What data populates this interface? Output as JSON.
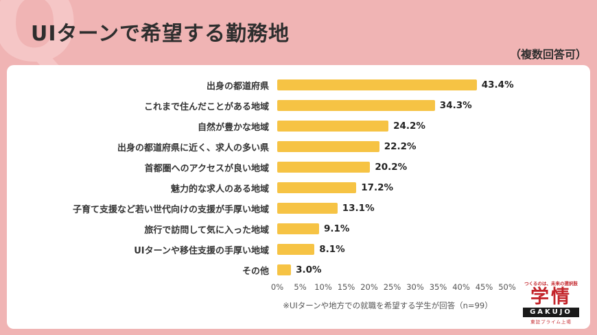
{
  "header": {
    "watermark": "Q",
    "title": "UIターンで希望する勤務地",
    "note": "（複数回答可）"
  },
  "chart_data": {
    "type": "bar",
    "orientation": "horizontal",
    "title": "UIターンで希望する勤務地",
    "categories": [
      "出身の都道府県",
      "これまで住んだことがある地域",
      "自然が豊かな地域",
      "出身の都道府県に近く、求人の多い県",
      "首都圏へのアクセスが良い地域",
      "魅力的な求人のある地域",
      "子育て支援など若い世代向けの支援が手厚い地域",
      "旅行で訪問して気に入った地域",
      "UIターンや移住支援の手厚い地域",
      "その他"
    ],
    "values": [
      43.4,
      34.3,
      24.2,
      22.2,
      20.2,
      17.2,
      13.1,
      9.1,
      8.1,
      3.0
    ],
    "value_labels": [
      "43.4%",
      "34.3%",
      "24.2%",
      "22.2%",
      "20.2%",
      "17.2%",
      "13.1%",
      "9.1%",
      "8.1%",
      "3.0%"
    ],
    "xlim": [
      0,
      50
    ],
    "x_ticks": [
      "0%",
      "5%",
      "10%",
      "15%",
      "20%",
      "25%",
      "30%",
      "35%",
      "40%",
      "45%",
      "50%"
    ],
    "bar_color": "#F6C344",
    "grid": false,
    "legend": "none",
    "footnote": "※UIターンや地方での就職を希望する学生が回答（n=99）"
  },
  "logo": {
    "tagline": "つくるのは、未来の選択肢",
    "name": "学情",
    "roman": "GAKUJO",
    "sub": "東証プライム上場"
  },
  "colors": {
    "background": "#F0B4B4",
    "card": "#FFFFFF",
    "bar": "#F6C344",
    "accent_red": "#C3242A"
  }
}
